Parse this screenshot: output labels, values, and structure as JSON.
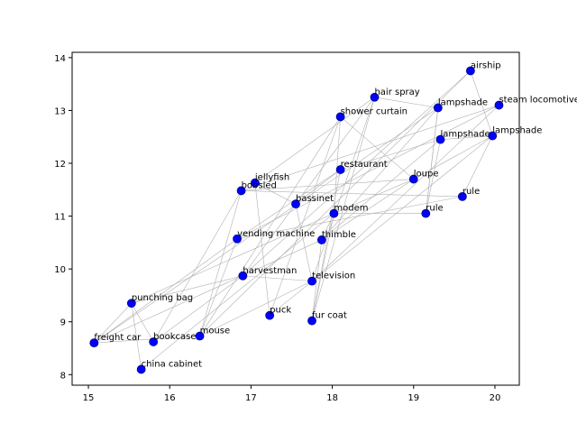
{
  "chart_data": {
    "type": "scatter",
    "title": "",
    "xlabel": "",
    "ylabel": "",
    "xlim": [
      14.8,
      20.3
    ],
    "ylim": [
      7.8,
      14.1
    ],
    "xticks": [
      15,
      16,
      17,
      18,
      19,
      20
    ],
    "yticks": [
      8,
      9,
      10,
      11,
      12,
      13,
      14
    ],
    "grid": false,
    "colors": {
      "point": "#0000ff",
      "point_edge": "#00008b",
      "line": "#b0b0b0",
      "axis": "#000000"
    },
    "points": [
      {
        "label": "airship",
        "x": 19.7,
        "y": 13.75
      },
      {
        "label": "hair spray",
        "x": 18.52,
        "y": 13.25
      },
      {
        "label": "lampshade",
        "x": 19.3,
        "y": 13.05
      },
      {
        "label": "steam locomotive",
        "x": 20.05,
        "y": 13.1
      },
      {
        "label": "shower curtain",
        "x": 18.1,
        "y": 12.88
      },
      {
        "label": "lampshade",
        "x": 19.33,
        "y": 12.45
      },
      {
        "label": "lampshade",
        "x": 19.97,
        "y": 12.52
      },
      {
        "label": "restaurant",
        "x": 18.1,
        "y": 11.88
      },
      {
        "label": "loupe",
        "x": 19.0,
        "y": 11.7
      },
      {
        "label": "jellyfish",
        "x": 17.05,
        "y": 11.63
      },
      {
        "label": "bobsled",
        "x": 16.88,
        "y": 11.48
      },
      {
        "label": "rule",
        "x": 19.6,
        "y": 11.37
      },
      {
        "label": "bassinet",
        "x": 17.55,
        "y": 11.23
      },
      {
        "label": "rule",
        "x": 19.15,
        "y": 11.05
      },
      {
        "label": "modem",
        "x": 18.02,
        "y": 11.05
      },
      {
        "label": "vending machine",
        "x": 16.83,
        "y": 10.57
      },
      {
        "label": "thimble",
        "x": 17.87,
        "y": 10.55
      },
      {
        "label": "harvestman",
        "x": 16.9,
        "y": 9.87
      },
      {
        "label": "television",
        "x": 17.75,
        "y": 9.77
      },
      {
        "label": "punching bag",
        "x": 15.53,
        "y": 9.35
      },
      {
        "label": "puck",
        "x": 17.23,
        "y": 9.12
      },
      {
        "label": "fur coat",
        "x": 17.75,
        "y": 9.02
      },
      {
        "label": "mouse",
        "x": 16.37,
        "y": 8.73
      },
      {
        "label": "freight car",
        "x": 15.07,
        "y": 8.6
      },
      {
        "label": "bookcase",
        "x": 15.8,
        "y": 8.62
      },
      {
        "label": "china cabinet",
        "x": 15.65,
        "y": 8.1
      }
    ],
    "edges": [
      [
        23,
        22
      ],
      [
        23,
        19
      ],
      [
        23,
        16
      ],
      [
        23,
        15
      ],
      [
        23,
        2
      ],
      [
        25,
        19
      ],
      [
        25,
        14
      ],
      [
        24,
        19
      ],
      [
        24,
        10
      ],
      [
        24,
        17
      ],
      [
        22,
        10
      ],
      [
        22,
        15
      ],
      [
        22,
        18
      ],
      [
        22,
        0
      ],
      [
        22,
        4
      ],
      [
        19,
        14
      ],
      [
        19,
        17
      ],
      [
        17,
        18
      ],
      [
        17,
        0
      ],
      [
        17,
        12
      ],
      [
        20,
        9
      ],
      [
        20,
        6
      ],
      [
        20,
        4
      ],
      [
        21,
        1
      ],
      [
        21,
        7
      ],
      [
        21,
        16
      ],
      [
        21,
        14
      ],
      [
        18,
        1
      ],
      [
        18,
        3
      ],
      [
        18,
        12
      ],
      [
        16,
        14
      ],
      [
        16,
        8
      ],
      [
        16,
        5
      ],
      [
        16,
        2
      ],
      [
        15,
        11
      ],
      [
        15,
        7
      ],
      [
        15,
        3
      ],
      [
        14,
        4
      ],
      [
        14,
        13
      ],
      [
        14,
        8
      ],
      [
        12,
        9
      ],
      [
        12,
        7
      ],
      [
        12,
        1
      ],
      [
        10,
        11
      ],
      [
        10,
        8
      ],
      [
        10,
        3
      ],
      [
        9,
        1
      ],
      [
        13,
        5
      ],
      [
        13,
        2
      ],
      [
        11,
        6
      ],
      [
        8,
        4
      ],
      [
        8,
        6
      ],
      [
        7,
        5
      ],
      [
        5,
        6
      ],
      [
        6,
        0
      ],
      [
        1,
        2
      ],
      [
        2,
        13
      ]
    ]
  }
}
